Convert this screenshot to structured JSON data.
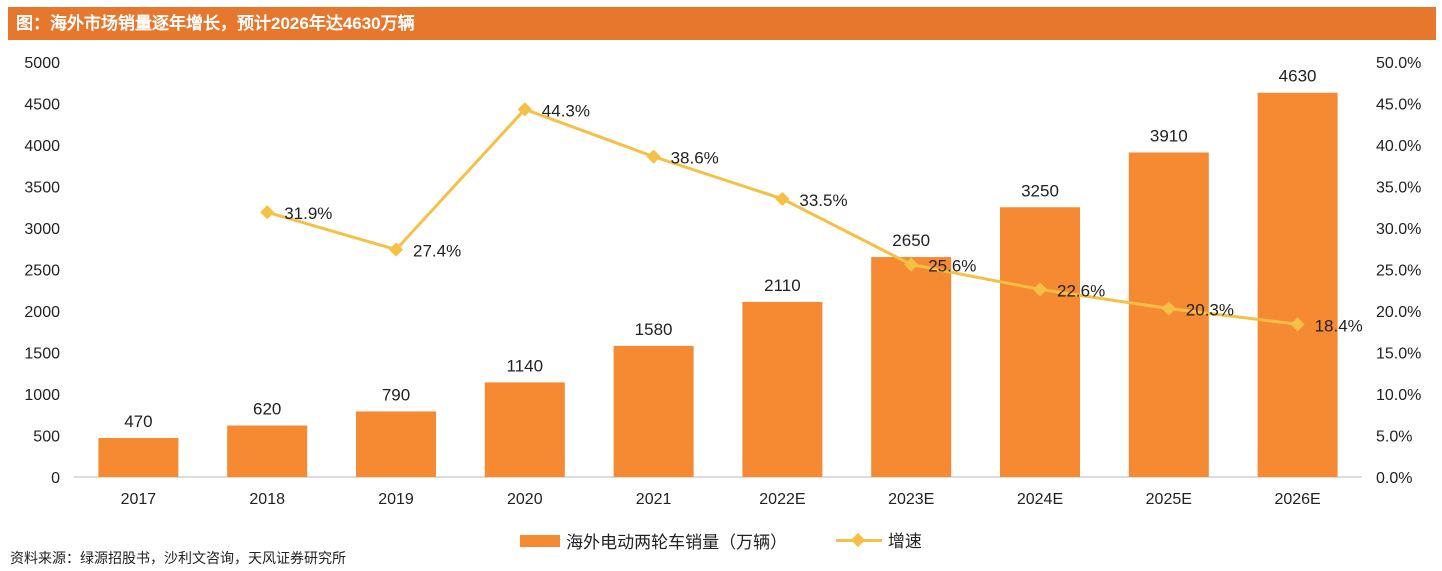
{
  "header": {
    "title": "图：海外市场销量逐年增长，预计2026年达4630万辆"
  },
  "chart_data": {
    "type": "bar+line",
    "categories": [
      "2017",
      "2018",
      "2019",
      "2020",
      "2021",
      "2022E",
      "2023E",
      "2024E",
      "2025E",
      "2026E"
    ],
    "series": [
      {
        "name": "海外电动两轮车销量（万辆）",
        "type": "bar",
        "axis": "left",
        "values": [
          470,
          620,
          790,
          1140,
          1580,
          2110,
          2650,
          3250,
          3910,
          4630
        ],
        "labels": [
          "470",
          "620",
          "790",
          "1140",
          "1580",
          "2110",
          "2650",
          "3250",
          "3910",
          "4630"
        ]
      },
      {
        "name": "增速",
        "type": "line",
        "axis": "right",
        "values": [
          null,
          31.9,
          27.4,
          44.3,
          38.6,
          33.5,
          25.6,
          22.6,
          20.3,
          18.4
        ],
        "labels": [
          "",
          "31.9%",
          "27.4%",
          "44.3%",
          "38.6%",
          "33.5%",
          "25.6%",
          "22.6%",
          "20.3%",
          "18.4%"
        ]
      }
    ],
    "y_left": {
      "min": 0,
      "max": 5000,
      "ticks": [
        "0",
        "500",
        "1000",
        "1500",
        "2000",
        "2500",
        "3000",
        "3500",
        "4000",
        "4500",
        "5000"
      ]
    },
    "y_right": {
      "min": 0,
      "max": 50,
      "ticks": [
        "0.0%",
        "5.0%",
        "10.0%",
        "15.0%",
        "20.0%",
        "25.0%",
        "30.0%",
        "35.0%",
        "40.0%",
        "45.0%",
        "50.0%"
      ]
    },
    "colors": {
      "bar": "#f58a33",
      "line": "#f5c044",
      "axis": "#d0d0d0",
      "text": "#222222"
    }
  },
  "legend": {
    "bar_label": "海外电动两轮车销量（万辆）",
    "line_label": "增速"
  },
  "footer": {
    "source": "资料来源：绿源招股书，沙利文咨询，天风证券研究所"
  }
}
